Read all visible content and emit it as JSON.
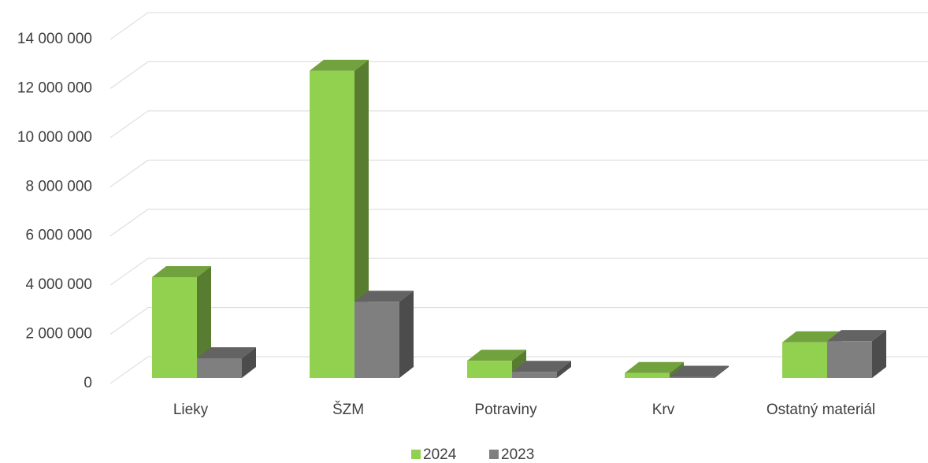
{
  "chart_data": {
    "type": "bar3d",
    "categories": [
      "Lieky",
      "ŠZM",
      "Potraviny",
      "Krv",
      "Ostatný materiál"
    ],
    "series": [
      {
        "name": "2024",
        "color": "#92d050",
        "values": [
          4100000,
          12500000,
          700000,
          200000,
          1450000
        ]
      },
      {
        "name": "2023",
        "color": "#7f7f7f",
        "values": [
          800000,
          3100000,
          250000,
          50000,
          1500000
        ]
      }
    ],
    "ylim": [
      0,
      14000000
    ],
    "yticks": [
      0,
      {
        "value": 2000000,
        "label": "2 000 000"
      },
      {
        "value": 4000000,
        "label": "4 000 000"
      },
      {
        "value": 6000000,
        "label": "6 000 000"
      },
      {
        "value": 8000000,
        "label": "8 000 000"
      },
      {
        "value": 10000000,
        "label": "10 000 000"
      },
      {
        "value": 12000000,
        "label": "12 000 000"
      },
      {
        "value": 14000000,
        "label": "14 000 000"
      }
    ],
    "grid": true,
    "legend": "bottom"
  }
}
